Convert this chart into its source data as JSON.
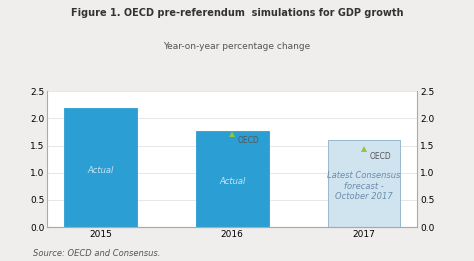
{
  "title": "Figure 1. OECD pre-referendum  simulations for GDP growth",
  "subtitle": "Year-on-year percentage change",
  "source": "Source: OECD and Consensus.",
  "categories": [
    "2015",
    "2016",
    "2017"
  ],
  "bar_values": [
    2.2,
    1.77,
    1.6
  ],
  "bar_colors": [
    "#2b9fd4",
    "#2b9fd4",
    "#d0e4f0"
  ],
  "bar_edgecolors": [
    "#2b9fd4",
    "#2b9fd4",
    "#8ab0c8"
  ],
  "oecd_markers": [
    null,
    1.72,
    1.44
  ],
  "oecd_marker_color": "#8dc63f",
  "bar_labels": [
    "Actual",
    "Actual",
    "Latest Consensus\nforecast -\nOctober 2017"
  ],
  "bar_label_colors": [
    "#cce4f5",
    "#cce4f5",
    "#6a8caa"
  ],
  "ylim": [
    0.0,
    2.5
  ],
  "yticks": [
    0.0,
    0.5,
    1.0,
    1.5,
    2.0,
    2.5
  ],
  "title_fontsize": 7.0,
  "subtitle_fontsize": 6.5,
  "source_fontsize": 6.0,
  "label_fontsize": 6.0,
  "tick_fontsize": 6.5,
  "oecd_fontsize": 5.5,
  "bg_color": "#f0eeec",
  "plot_bg_color": "#ffffff"
}
